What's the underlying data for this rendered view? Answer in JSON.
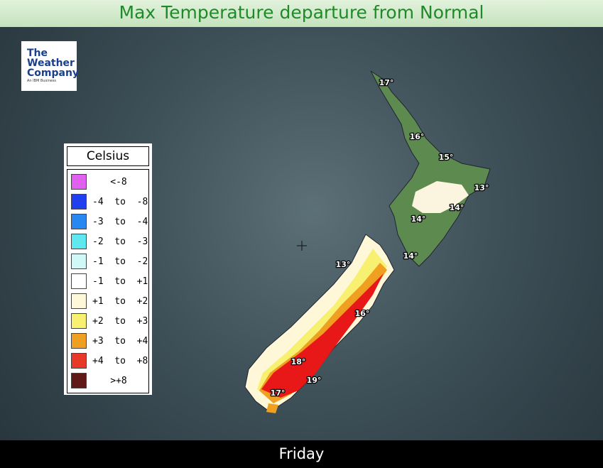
{
  "header": {
    "title": "Max Temperature departure from Normal"
  },
  "logo": {
    "lines": [
      "The",
      "Weather",
      "Company"
    ],
    "tagline": "An IBM Business"
  },
  "legend": {
    "title": "Celsius",
    "items": [
      {
        "label": "<-8",
        "color": "#e060f0"
      },
      {
        "label": "-4  to  -8",
        "color": "#2040f0"
      },
      {
        "label": "-3  to  -4",
        "color": "#2888f0"
      },
      {
        "label": "-2  to  -3",
        "color": "#60e8f0"
      },
      {
        "label": "-1  to  -2",
        "color": "#d0f8f8"
      },
      {
        "label": "-1  to  +1",
        "color": "#ffffff"
      },
      {
        "label": "+1  to  +2",
        "color": "#fff8d8"
      },
      {
        "label": "+2  to  +3",
        "color": "#f8f070"
      },
      {
        "label": "+3  to  +4",
        "color": "#f0a020"
      },
      {
        "label": "+4  to  +8",
        "color": "#e83828"
      },
      {
        "label": ">+8",
        "color": "#601818"
      }
    ]
  },
  "map": {
    "labels": [
      "17°",
      "16°",
      "15°",
      "13°",
      "14°",
      "14°",
      "14°",
      "13°",
      "16°",
      "18°",
      "19°",
      "17°"
    ]
  },
  "footer": {
    "day": "Friday"
  }
}
